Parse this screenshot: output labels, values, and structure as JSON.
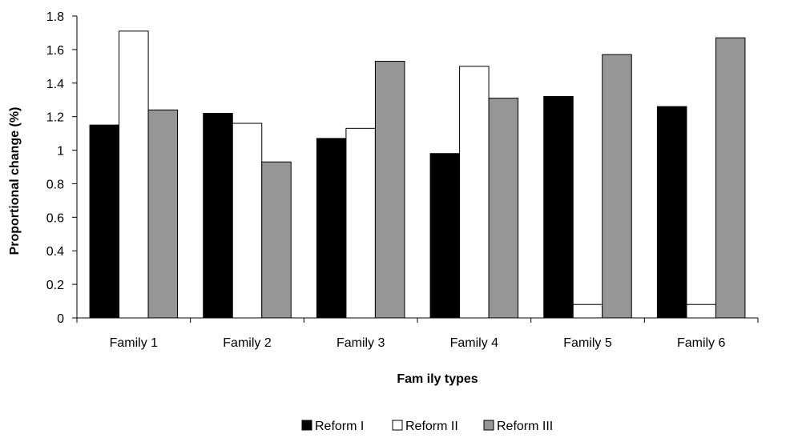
{
  "chart_data": {
    "type": "bar",
    "title": "",
    "xlabel": "Fam ily types",
    "ylabel": "Proportional change (%)",
    "ylim": [
      0,
      1.8
    ],
    "y_ticks": [
      "0",
      "0.2",
      "0.4",
      "0.6",
      "0.8",
      "1",
      "1.2",
      "1.4",
      "1.6",
      "1.8"
    ],
    "categories": [
      "Family 1",
      "Family 2",
      "Family 3",
      "Family 4",
      "Family 5",
      "Family 6"
    ],
    "series": [
      {
        "name": "Reform I",
        "color": "#000000",
        "values": [
          1.15,
          1.22,
          1.07,
          0.98,
          1.32,
          1.26
        ]
      },
      {
        "name": "Reform II",
        "color": "#ffffff",
        "values": [
          1.71,
          1.16,
          1.13,
          1.5,
          0.08,
          0.08
        ]
      },
      {
        "name": "Reform III",
        "color": "#969696",
        "values": [
          1.24,
          0.93,
          1.53,
          1.31,
          1.57,
          1.67
        ]
      }
    ],
    "grid": false,
    "legend_position": "bottom"
  }
}
